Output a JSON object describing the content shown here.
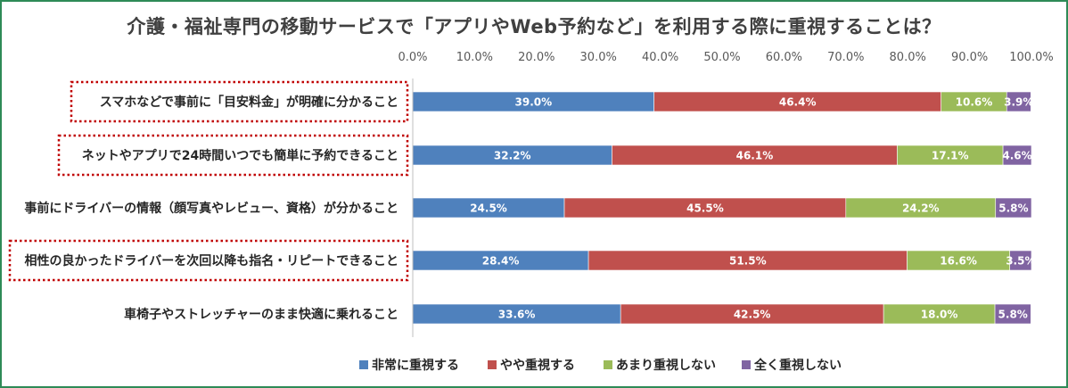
{
  "chart_data": {
    "type": "bar",
    "orientation": "horizontal-stacked-100",
    "title": "介護・福祉専門の移動サービスで「アプリやWeb予約など」を利用する際に重視することは？",
    "categories": [
      "スマホなどで事前に「目安料金」が明確に分かること",
      "ネットやアプリで24時間いつでも簡単に予約できること",
      "事前にドライバーの情報（顔写真やレビュー、資格）が分かること",
      "相性の良かったドライバーを次回以降も指名・リピートできること",
      "車椅子やストレッチャーのまま快適に乗れること"
    ],
    "highlighted_categories": [
      0,
      1,
      3
    ],
    "highlight_color": "#c00000",
    "series": [
      {
        "name": "非常に重視する",
        "color": "#4f81bd",
        "values": [
          39.0,
          32.2,
          24.5,
          28.4,
          33.6
        ],
        "labels": [
          "39.0%",
          "32.2%",
          "24.5%",
          "28.4%",
          "33.6%"
        ]
      },
      {
        "name": "やや重視する",
        "color": "#c0504d",
        "values": [
          46.4,
          46.1,
          45.5,
          51.5,
          42.5
        ],
        "labels": [
          "46.4%",
          "46.1%",
          "45.5%",
          "51.5%",
          "42.5%"
        ]
      },
      {
        "name": "あまり重視しない",
        "color": "#9bbb59",
        "values": [
          10.6,
          17.1,
          24.2,
          16.6,
          18.0
        ],
        "labels": [
          "10.6%",
          "17.1%",
          "24.2%",
          "16.6%",
          "18.0%"
        ]
      },
      {
        "name": "全く重視しない",
        "color": "#8064a2",
        "values": [
          3.9,
          4.6,
          5.8,
          3.5,
          5.8
        ],
        "labels": [
          "3.9%",
          "4.6%",
          "5.8%",
          "3.5%",
          "5.8%"
        ]
      }
    ],
    "xlim": [
      0,
      100
    ],
    "x_ticks": [
      "0.0%",
      "10.0%",
      "20.0%",
      "30.0%",
      "40.0%",
      "50.0%",
      "60.0%",
      "70.0%",
      "80.0%",
      "90.0%",
      "100.0%"
    ],
    "axis_position": "top",
    "grid": false,
    "legend_position": "bottom",
    "frame_color": "#2e8b57"
  }
}
